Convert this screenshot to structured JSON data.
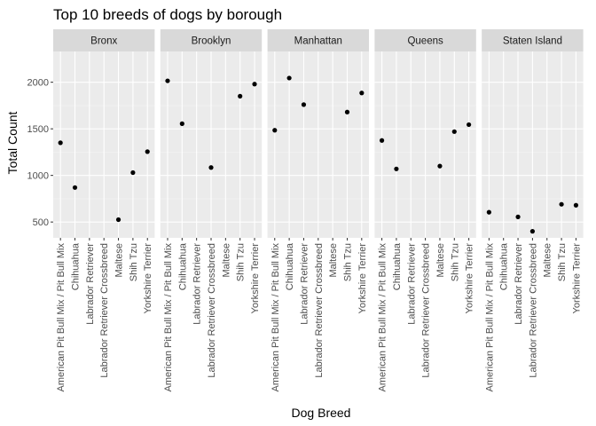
{
  "chart_data": {
    "type": "scatter",
    "title": "Top 10 breeds of dogs by borough",
    "xlabel": "Dog Breed",
    "ylabel": "Total Count",
    "ylim": [
      330,
      2330
    ],
    "yticks": [
      500,
      1000,
      1500,
      2000
    ],
    "grid": true,
    "facet_by": "borough",
    "categories": [
      "American Pit Bull Mix / Pit Bull Mix",
      "Chihuahua",
      "Labrador Retriever",
      "Labrador Retriever Crossbreed",
      "Maltese",
      "Shih Tzu",
      "Yorkshire Terrier"
    ],
    "panels": [
      {
        "label": "Bronx",
        "points": [
          {
            "breed": "American Pit Bull Mix / Pit Bull Mix",
            "count": 1350
          },
          {
            "breed": "Chihuahua",
            "count": 870
          },
          {
            "breed": "Maltese",
            "count": 525
          },
          {
            "breed": "Shih Tzu",
            "count": 1030
          },
          {
            "breed": "Yorkshire Terrier",
            "count": 1255
          }
        ]
      },
      {
        "label": "Brooklyn",
        "points": [
          {
            "breed": "American Pit Bull Mix / Pit Bull Mix",
            "count": 2015
          },
          {
            "breed": "Chihuahua",
            "count": 1555
          },
          {
            "breed": "Labrador Retriever Crossbreed",
            "count": 1085
          },
          {
            "breed": "Shih Tzu",
            "count": 1850
          },
          {
            "breed": "Yorkshire Terrier",
            "count": 1980
          }
        ]
      },
      {
        "label": "Manhattan",
        "points": [
          {
            "breed": "American Pit Bull Mix / Pit Bull Mix",
            "count": 1485
          },
          {
            "breed": "Chihuahua",
            "count": 2045
          },
          {
            "breed": "Labrador Retriever",
            "count": 1760
          },
          {
            "breed": "Shih Tzu",
            "count": 1680
          },
          {
            "breed": "Yorkshire Terrier",
            "count": 1885
          }
        ]
      },
      {
        "label": "Queens",
        "points": [
          {
            "breed": "American Pit Bull Mix / Pit Bull Mix",
            "count": 1375
          },
          {
            "breed": "Chihuahua",
            "count": 1070
          },
          {
            "breed": "Maltese",
            "count": 1100
          },
          {
            "breed": "Shih Tzu",
            "count": 1470
          },
          {
            "breed": "Yorkshire Terrier",
            "count": 1545
          }
        ]
      },
      {
        "label": "Staten Island",
        "points": [
          {
            "breed": "American Pit Bull Mix / Pit Bull Mix",
            "count": 605
          },
          {
            "breed": "Labrador Retriever",
            "count": 555
          },
          {
            "breed": "Labrador Retriever Crossbreed",
            "count": 400
          },
          {
            "breed": "Shih Tzu",
            "count": 690
          },
          {
            "breed": "Yorkshire Terrier",
            "count": 680
          }
        ]
      }
    ],
    "colors": {
      "panel_background": "#ebebeb",
      "strip_background": "#d9d9d9",
      "grid_major": "#ffffff",
      "grid_minor": "#f5f5f5",
      "point": "#000000",
      "tick_text": "#4d4d4d"
    }
  }
}
